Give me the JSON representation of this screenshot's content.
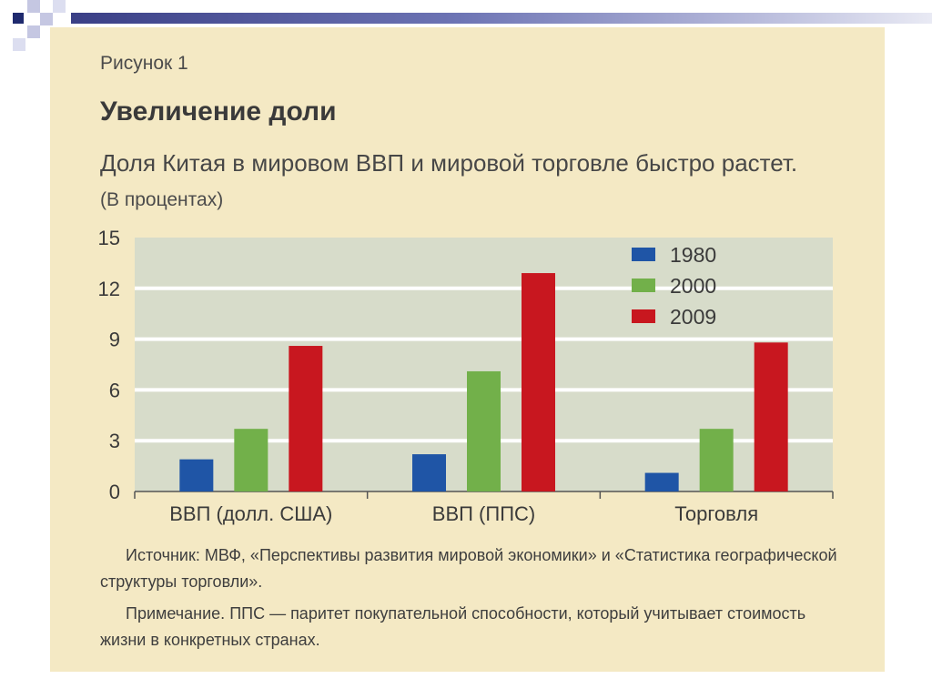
{
  "figure_label": "Рисунок 1",
  "chart_data": {
    "type": "bar",
    "title": "Увеличение доли",
    "subtitle": "Доля Китая в мировом ВВП и мировой торговле быстро растет.",
    "ylabel": "(В процентах)",
    "xlabel": "",
    "categories": [
      "ВВП (долл. США)",
      "ВВП (ППС)",
      "Торговля"
    ],
    "series": [
      {
        "name": "1980",
        "color": "#1f55a6",
        "values": [
          1.9,
          2.2,
          1.1
        ]
      },
      {
        "name": "2000",
        "color": "#72b04a",
        "values": [
          3.7,
          7.1,
          3.7
        ]
      },
      {
        "name": "2009",
        "color": "#c8171f",
        "values": [
          8.6,
          12.9,
          8.8
        ]
      }
    ],
    "ylim": [
      0,
      15
    ],
    "yticks": [
      "0",
      "3",
      "6",
      "9",
      "12",
      "15"
    ],
    "grid": true,
    "legend": "top-right"
  },
  "notes": {
    "source": "Источник: МВФ, «Перспективы развития мировой экономики» и «Статистика географической структуры торговли».",
    "note": "Примечание. ППС — паритет покупательной способности, который учитывает стоимость жизни в конкретных странах."
  }
}
